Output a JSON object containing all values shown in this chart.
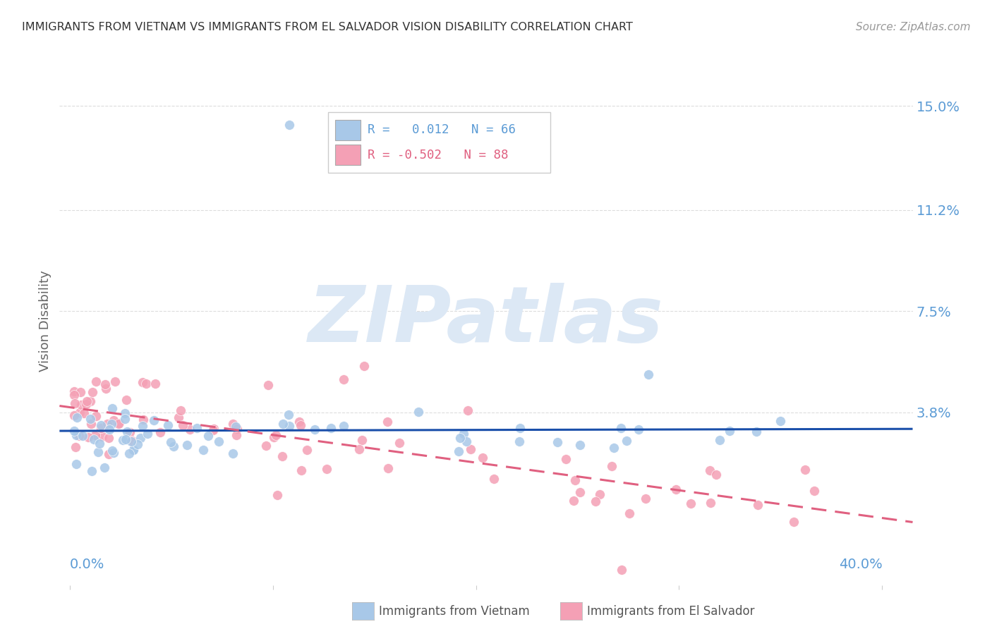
{
  "title": "IMMIGRANTS FROM VIETNAM VS IMMIGRANTS FROM EL SALVADOR VISION DISABILITY CORRELATION CHART",
  "source": "Source: ZipAtlas.com",
  "ylabel": "Vision Disability",
  "ytick_labels": [
    "15.0%",
    "11.2%",
    "7.5%",
    "3.8%"
  ],
  "ytick_values": [
    0.15,
    0.112,
    0.075,
    0.038
  ],
  "ylim": [
    -0.025,
    0.168
  ],
  "xlim": [
    -0.005,
    0.415
  ],
  "r_vietnam": 0.012,
  "n_vietnam": 66,
  "r_salvador": -0.502,
  "n_salvador": 88,
  "color_vietnam": "#a8c8e8",
  "color_salvador": "#f4a0b5",
  "trendline_vietnam": "#1a4faa",
  "trendline_salvador": "#e06080",
  "background_color": "#ffffff",
  "grid_color": "#dddddd",
  "title_color": "#333333",
  "axis_label_color": "#5b9bd5",
  "watermark_color": "#dce8f5"
}
